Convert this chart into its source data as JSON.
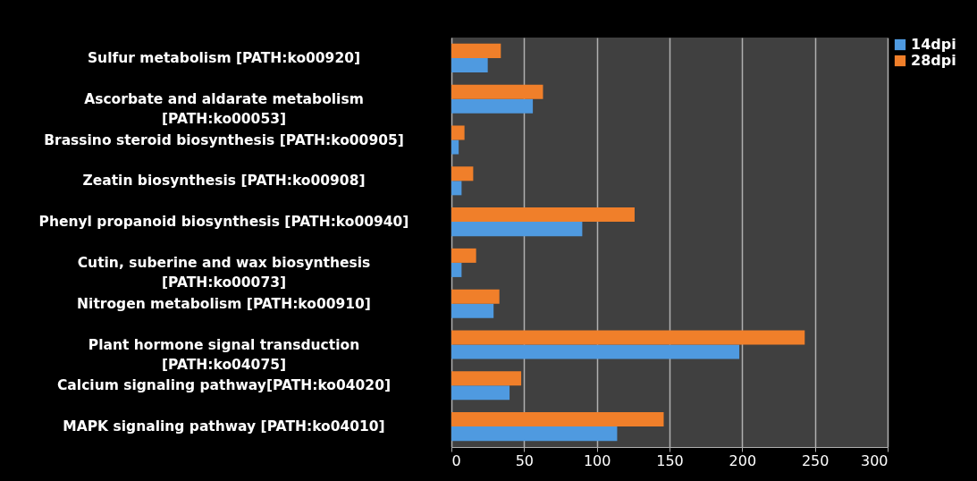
{
  "chart_data": {
    "type": "bar",
    "orientation": "horizontal",
    "categories": [
      "Sulfur metabolism [PATH:ko00920]",
      "Ascorbate and aldarate metabolism [PATH:ko00053]",
      "Brassino steroid biosynthesis [PATH:ko00905]",
      "Zeatin biosynthesis [PATH:ko00908]",
      "Phenyl propanoid biosynthesis [PATH:ko00940]",
      "Cutin, suberine and wax biosynthesis [PATH:ko00073]",
      "Nitrogen metabolism [PATH:ko00910]",
      "Plant hormone signal transduction [PATH:ko04075]",
      "Calcium signaling pathway[PATH:ko04020]",
      "MAPK signaling pathway [PATH:ko04010]"
    ],
    "series": [
      {
        "name": "14dpi",
        "color": "#4f9ae0",
        "values": [
          25,
          56,
          5,
          7,
          90,
          7,
          29,
          198,
          40,
          114
        ]
      },
      {
        "name": "28dpi",
        "color": "#f07f2a",
        "values": [
          34,
          63,
          9,
          15,
          126,
          17,
          33,
          243,
          48,
          146
        ]
      }
    ],
    "xlim": [
      0,
      300
    ],
    "xticks": [
      0,
      50,
      100,
      150,
      200,
      250,
      300
    ],
    "grid": "x",
    "legend": "right"
  }
}
